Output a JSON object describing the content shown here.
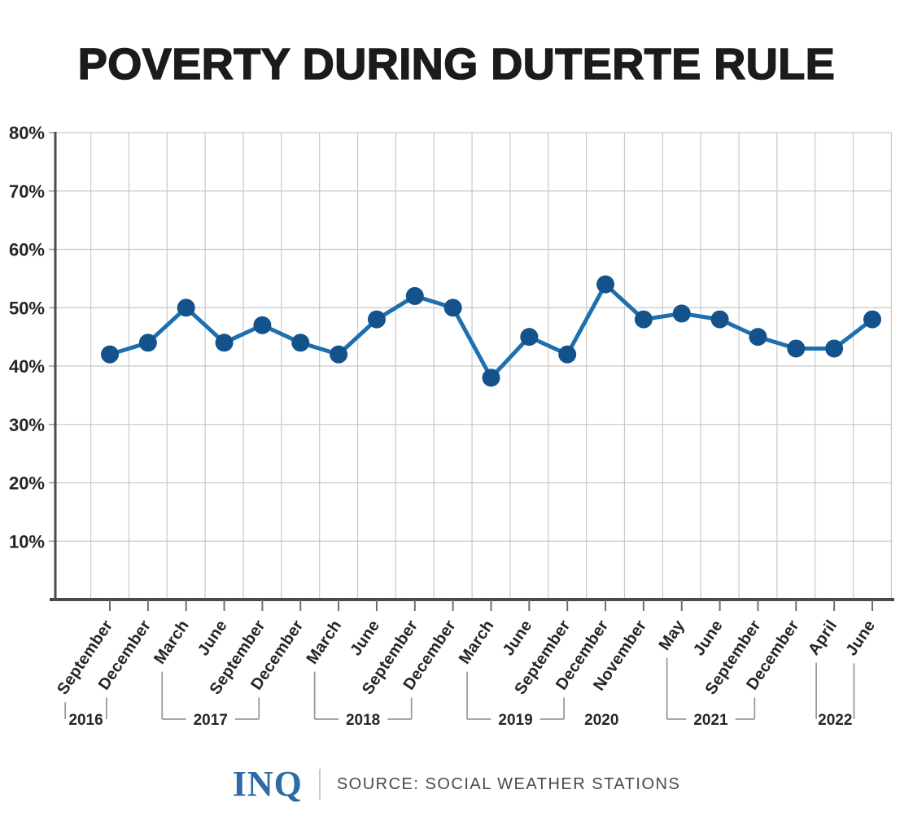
{
  "chart_data": {
    "type": "line",
    "title": "POVERTY DURING DUTERTE RULE",
    "xlabel": "",
    "ylabel": "",
    "ylim": [
      0,
      80
    ],
    "yticks": [
      10,
      20,
      30,
      40,
      50,
      60,
      70,
      80
    ],
    "ytick_suffix": "%",
    "grid": true,
    "legend": false,
    "x_label_rotation_deg": -56,
    "points": [
      {
        "month": "September",
        "year": "2016",
        "value": 42
      },
      {
        "month": "December",
        "year": "2016",
        "value": 44
      },
      {
        "month": "March",
        "year": "2017",
        "value": 50
      },
      {
        "month": "June",
        "year": "2017",
        "value": 44
      },
      {
        "month": "September",
        "year": "2017",
        "value": 47
      },
      {
        "month": "December",
        "year": "2017",
        "value": 44
      },
      {
        "month": "March",
        "year": "2018",
        "value": 42
      },
      {
        "month": "June",
        "year": "2018",
        "value": 48
      },
      {
        "month": "September",
        "year": "2018",
        "value": 52
      },
      {
        "month": "December",
        "year": "2018",
        "value": 50
      },
      {
        "month": "March",
        "year": "2019",
        "value": 38
      },
      {
        "month": "June",
        "year": "2019",
        "value": 45
      },
      {
        "month": "September",
        "year": "2019",
        "value": 42
      },
      {
        "month": "December",
        "year": "2019",
        "value": 54
      },
      {
        "month": "November",
        "year": "2020",
        "value": 48
      },
      {
        "month": "May",
        "year": "2021",
        "value": 49
      },
      {
        "month": "June",
        "year": "2021",
        "value": 48
      },
      {
        "month": "September",
        "year": "2021",
        "value": 45
      },
      {
        "month": "December",
        "year": "2021",
        "value": 43
      },
      {
        "month": "April",
        "year": "2022",
        "value": 43
      },
      {
        "month": "June",
        "year": "2022",
        "value": 48
      }
    ],
    "year_groups": [
      {
        "year": "2016",
        "from": 0,
        "to": 1,
        "bracket": true
      },
      {
        "year": "2017",
        "from": 2,
        "to": 5,
        "bracket": true
      },
      {
        "year": "2018",
        "from": 6,
        "to": 9,
        "bracket": true
      },
      {
        "year": "2019",
        "from": 10,
        "to": 13,
        "bracket": true
      },
      {
        "year": "2020",
        "from": 14,
        "to": 14,
        "bracket": false
      },
      {
        "year": "2021",
        "from": 15,
        "to": 18,
        "bracket": true
      },
      {
        "year": "2022",
        "from": 19,
        "to": 20,
        "bracket": true
      }
    ],
    "colors": {
      "line": "#1e6fae",
      "point": "#14528c",
      "axis": "#4a4a4a",
      "grid": "#c9c9c9",
      "tick": "#6e6e6e",
      "bracket": "#9a9a9a",
      "text": "#262626"
    }
  },
  "footer": {
    "logo": "INQ",
    "logo_color": "#2f6ba3",
    "source": "SOURCE: SOCIAL WEATHER STATIONS"
  }
}
